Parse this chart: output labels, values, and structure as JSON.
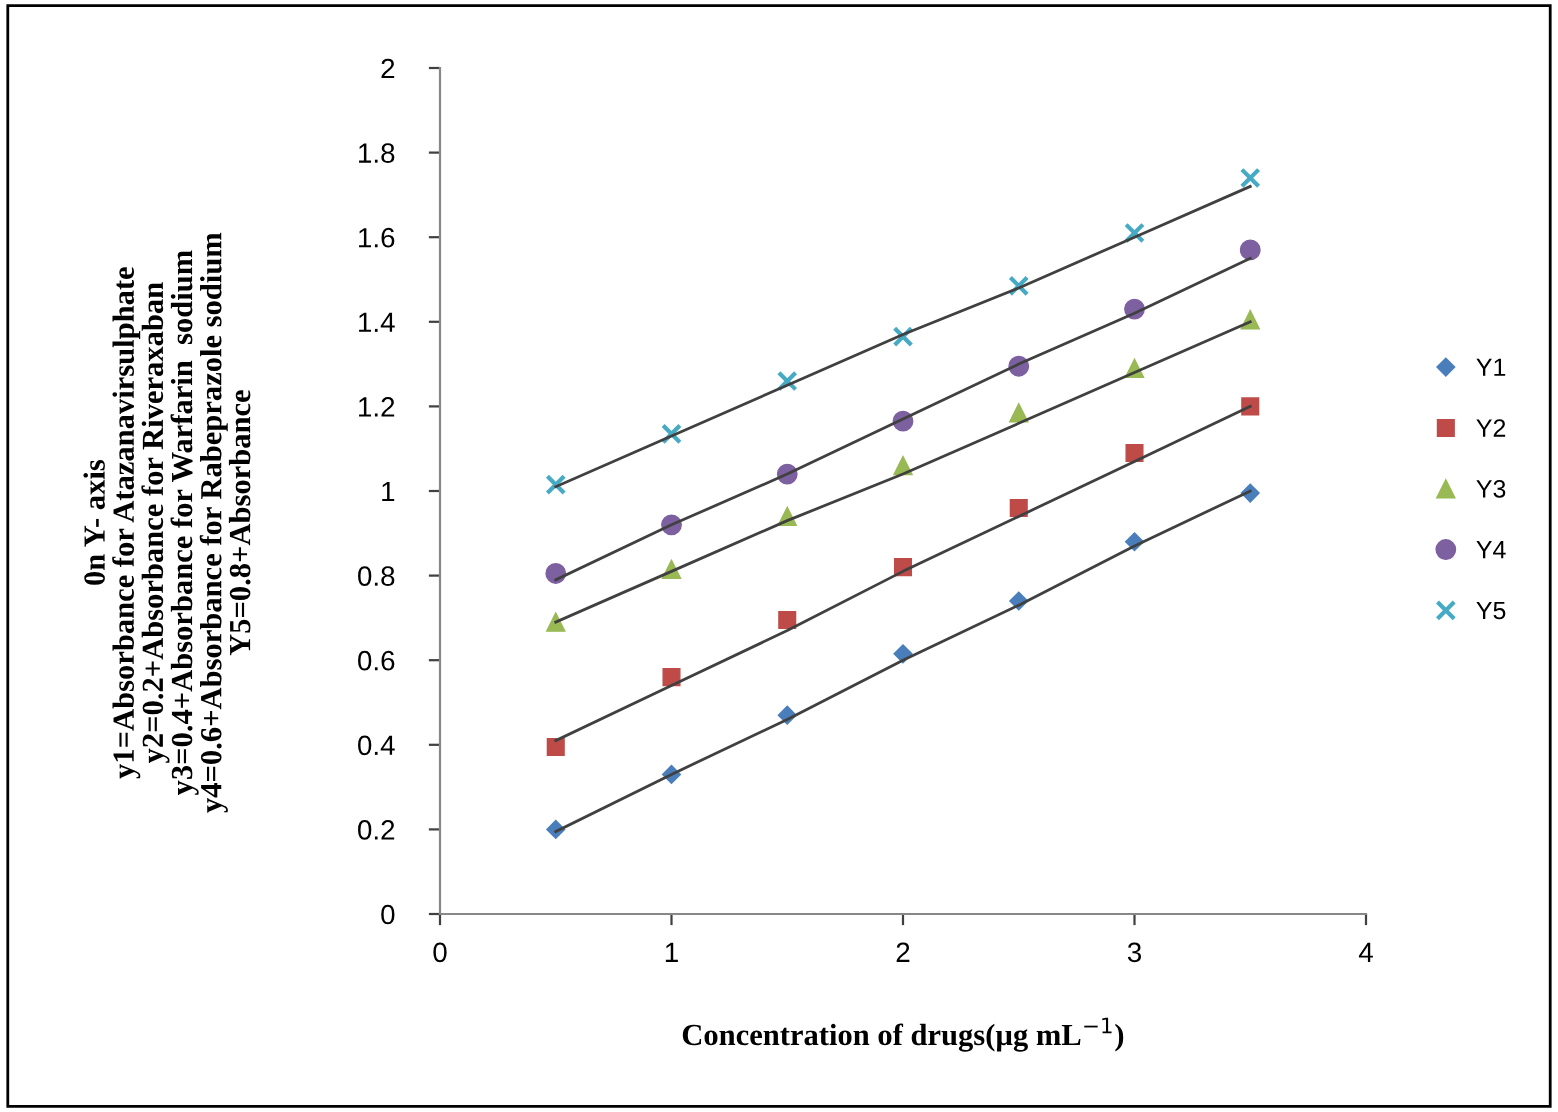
{
  "chart_data": {
    "type": "scatter",
    "xlabel": "Concentration of drugs(µg mL$^{−1}$)",
    "ylabel": "0n Y- axis\ny1=Absorbance for Atazanavirsulphate\ny2=0.2+Absorbance for Riveraxaban\ny3=0.4+Absorbance for Warfarin  sodium\ny4=0.6+Absorbance for Rabeprazole sodium\nY5=0.8+Absorbance",
    "x": [
      0.5,
      1,
      1.5,
      2,
      2.5,
      3,
      3.5
    ],
    "series": [
      {
        "name": "Y1",
        "color": "#4a7ebb",
        "marker": "diamond",
        "values": [
          0.2,
          0.33,
          0.47,
          0.615,
          0.74,
          0.88,
          0.995
        ]
      },
      {
        "name": "Y2",
        "color": "#be4b48",
        "marker": "square",
        "values": [
          0.395,
          0.56,
          0.695,
          0.82,
          0.96,
          1.09,
          1.2
        ]
      },
      {
        "name": "Y3",
        "color": "#98b954",
        "marker": "triangle",
        "values": [
          0.69,
          0.815,
          0.94,
          1.06,
          1.185,
          1.29,
          1.405
        ]
      },
      {
        "name": "Y4",
        "color": "#7d60a0",
        "marker": "circle",
        "values": [
          0.805,
          0.92,
          1.04,
          1.165,
          1.295,
          1.43,
          1.57
        ]
      },
      {
        "name": "Y5",
        "color": "#46aac5",
        "marker": "cross",
        "values": [
          1.015,
          1.135,
          1.26,
          1.365,
          1.485,
          1.61,
          1.74
        ]
      },
      {
        "type": "line",
        "color": "#404040",
        "values": [
          0.195,
          0.33,
          0.46,
          0.6,
          0.73,
          0.87,
          1.0
        ]
      },
      {
        "type": "line",
        "color": "#404040",
        "values": [
          0.41,
          0.54,
          0.67,
          0.81,
          0.94,
          1.07,
          1.2
        ]
      },
      {
        "type": "line",
        "color": "#404040",
        "values": [
          0.69,
          0.81,
          0.93,
          1.04,
          1.16,
          1.28,
          1.4
        ]
      },
      {
        "type": "line",
        "color": "#404040",
        "values": [
          0.79,
          0.92,
          1.04,
          1.17,
          1.3,
          1.42,
          1.55
        ]
      },
      {
        "type": "line",
        "color": "#404040",
        "values": [
          1.01,
          1.13,
          1.25,
          1.37,
          1.48,
          1.6,
          1.72
        ]
      }
    ],
    "xlim": [
      0,
      4
    ],
    "xticks": [
      0,
      1,
      2,
      3,
      4
    ],
    "ylim": [
      0,
      2
    ],
    "yticks": [
      0,
      0.2,
      0.4,
      0.6,
      0.8,
      1,
      1.2,
      1.4,
      1.6,
      1.8,
      2
    ],
    "grid": false,
    "legend": "right"
  }
}
